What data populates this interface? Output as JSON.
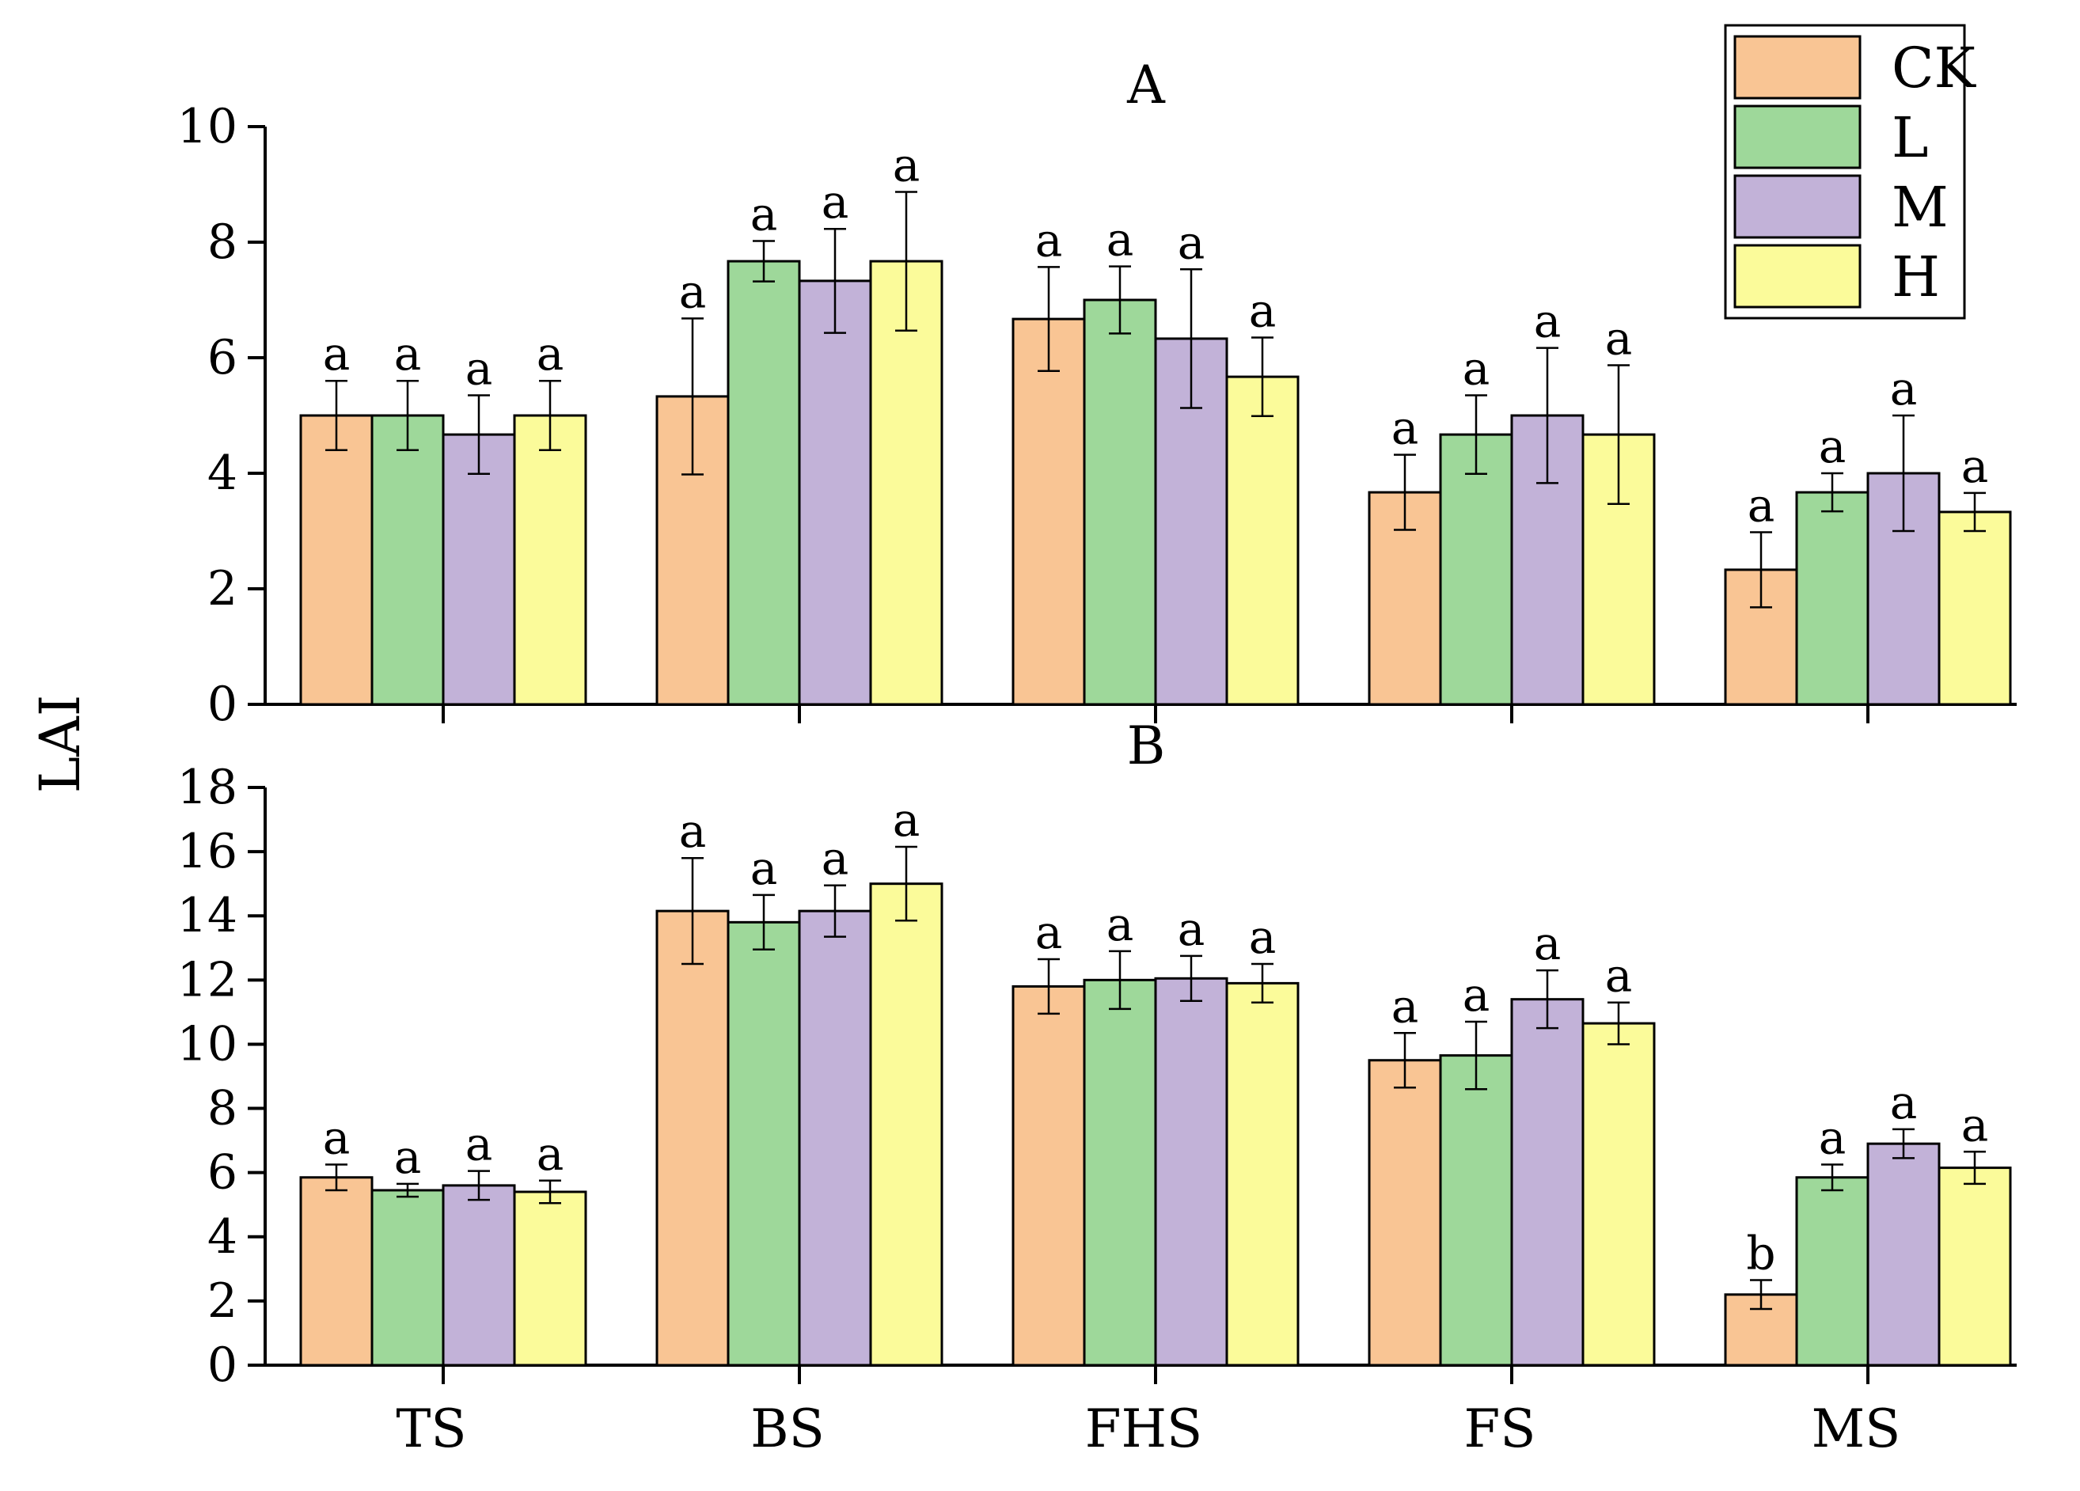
{
  "chart_data": {
    "type": "bar",
    "ylabel": "LAI",
    "categories": [
      "TS",
      "BS",
      "FHS",
      "FS",
      "MS"
    ],
    "legend": {
      "position": "top-right",
      "entries": [
        {
          "name": "CK",
          "color": "#F9C594"
        },
        {
          "name": "L",
          "color": "#9ED89A"
        },
        {
          "name": "M",
          "color": "#C2B2D8"
        },
        {
          "name": "H",
          "color": "#FBFB9A"
        }
      ]
    },
    "panels": [
      {
        "title": "A",
        "ylim": [
          0,
          10
        ],
        "yticks": [
          "0",
          "2",
          "4",
          "6",
          "8",
          "10"
        ],
        "series": [
          {
            "name": "CK",
            "values": [
              5.0,
              5.33,
              6.67,
              3.67,
              2.33
            ],
            "errors": [
              0.6,
              1.35,
              0.9,
              0.65,
              0.65
            ],
            "letters": [
              "a",
              "a",
              "a",
              "a",
              "a"
            ]
          },
          {
            "name": "L",
            "values": [
              5.0,
              7.67,
              7.0,
              4.67,
              3.67
            ],
            "errors": [
              0.6,
              0.35,
              0.58,
              0.68,
              0.33
            ],
            "letters": [
              "a",
              "a",
              "a",
              "a",
              "a"
            ]
          },
          {
            "name": "M",
            "values": [
              4.67,
              7.33,
              6.33,
              5.0,
              4.0
            ],
            "errors": [
              0.68,
              0.9,
              1.2,
              1.17,
              1.0
            ],
            "letters": [
              "a",
              "a",
              "a",
              "a",
              "a"
            ]
          },
          {
            "name": "H",
            "values": [
              5.0,
              7.67,
              5.67,
              4.67,
              3.33
            ],
            "errors": [
              0.6,
              1.2,
              0.68,
              1.2,
              0.33
            ],
            "letters": [
              "a",
              "a",
              "a",
              "a",
              "a"
            ]
          }
        ]
      },
      {
        "title": "B",
        "ylim": [
          0,
          18
        ],
        "yticks": [
          "0",
          "2",
          "4",
          "6",
          "8",
          "10",
          "12",
          "14",
          "16",
          "18"
        ],
        "series": [
          {
            "name": "CK",
            "values": [
              5.85,
              14.15,
              11.8,
              9.5,
              2.2
            ],
            "errors": [
              0.4,
              1.65,
              0.85,
              0.85,
              0.45
            ],
            "letters": [
              "a",
              "a",
              "a",
              "a",
              "b"
            ]
          },
          {
            "name": "L",
            "values": [
              5.45,
              13.8,
              12.0,
              9.65,
              5.85
            ],
            "errors": [
              0.2,
              0.85,
              0.9,
              1.05,
              0.4
            ],
            "letters": [
              "a",
              "a",
              "a",
              "a",
              "a"
            ]
          },
          {
            "name": "M",
            "values": [
              5.6,
              14.15,
              12.05,
              11.4,
              6.9
            ],
            "errors": [
              0.45,
              0.8,
              0.7,
              0.9,
              0.45
            ],
            "letters": [
              "a",
              "a",
              "a",
              "a",
              "a"
            ]
          },
          {
            "name": "H",
            "values": [
              5.4,
              15.0,
              11.9,
              10.65,
              6.15
            ],
            "errors": [
              0.35,
              1.15,
              0.6,
              0.65,
              0.5
            ],
            "letters": [
              "a",
              "a",
              "a",
              "a",
              "a"
            ]
          }
        ]
      }
    ]
  }
}
